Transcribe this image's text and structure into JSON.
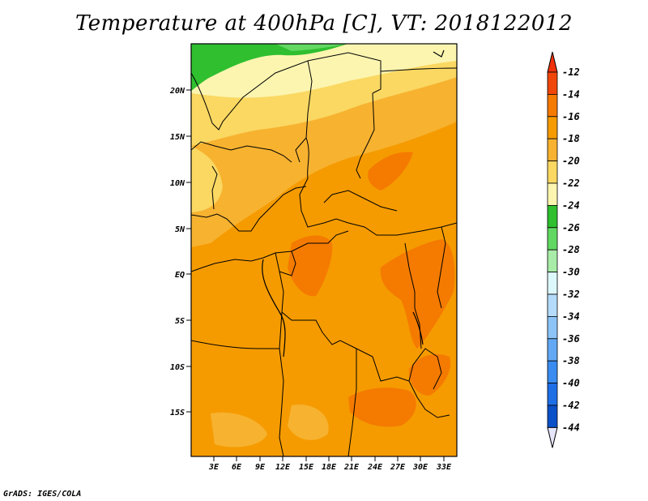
{
  "title": "Temperature at 400hPa [C], VT: 2018122012",
  "credit": "GrADS: IGES/COLA",
  "map": {
    "lat_ticks": [
      "20N",
      "15N",
      "10N",
      "5N",
      "EQ",
      "5S",
      "10S",
      "15S"
    ],
    "lon_ticks": [
      "3E",
      "6E",
      "9E",
      "12E",
      "15E",
      "18E",
      "21E",
      "24E",
      "27E",
      "30E",
      "33E"
    ]
  },
  "colorbar": {
    "labels": [
      "-12",
      "-14",
      "-16",
      "-18",
      "-20",
      "-22",
      "-24",
      "-26",
      "-28",
      "-30",
      "-32",
      "-34",
      "-36",
      "-38",
      "-40",
      "-42",
      "-44"
    ],
    "colors": [
      "#f0460a",
      "#f57a00",
      "#f59b00",
      "#f7b230",
      "#fad862",
      "#fcf5b0",
      "#2fbf2f",
      "#62d862",
      "#a8eca8",
      "#dcf8fa",
      "#b4dcfa",
      "#8cc4f8",
      "#62a8f4",
      "#3a8cf0",
      "#1e6ee6",
      "#0a50c8",
      "#0a2c8c",
      "#0a0a64"
    ],
    "top_arrow_color": "#f0320a",
    "bottom_arrow_color": "#e6e6fa"
  }
}
